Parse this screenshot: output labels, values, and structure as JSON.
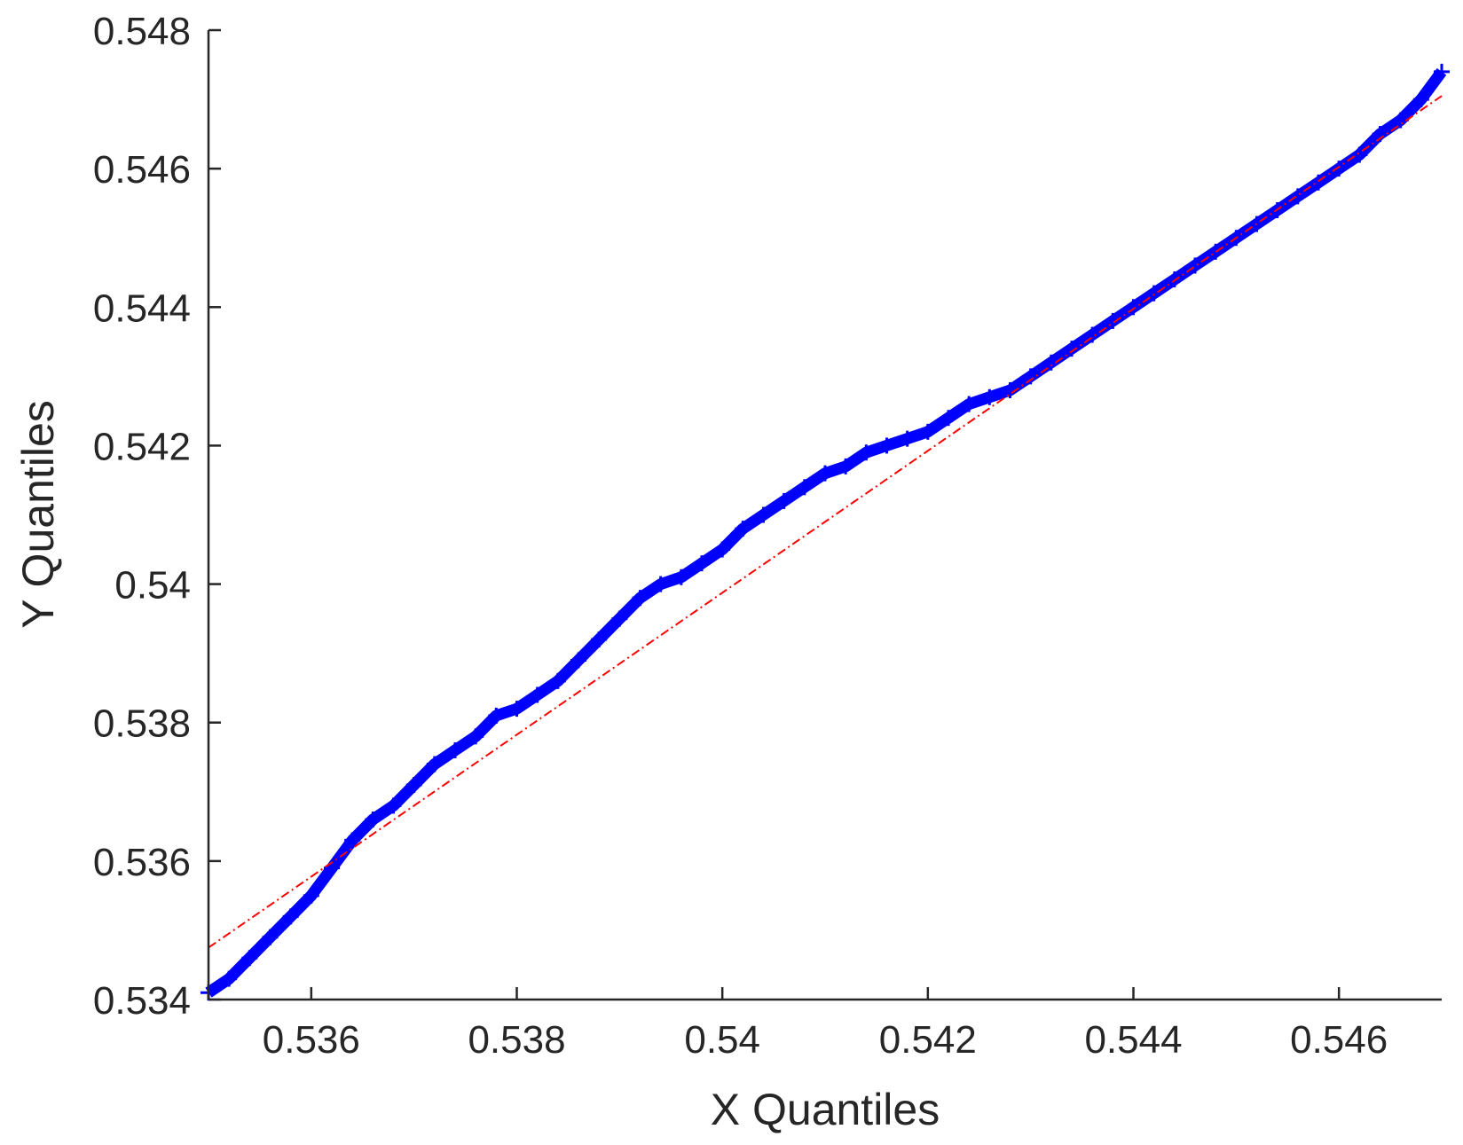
{
  "chart_data": {
    "type": "scatter",
    "title": "",
    "xlabel": "X Quantiles",
    "ylabel": "Y Quantiles",
    "xlim": [
      0.535,
      0.547
    ],
    "ylim": [
      0.534,
      0.548
    ],
    "x_ticks": [
      0.536,
      0.538,
      0.54,
      0.542,
      0.544,
      0.546
    ],
    "x_tick_labels": [
      "0.536",
      "0.538",
      "0.54",
      "0.542",
      "0.544",
      "0.546"
    ],
    "y_ticks": [
      0.534,
      0.536,
      0.538,
      0.54,
      0.542,
      0.544,
      0.546,
      0.548
    ],
    "y_tick_labels": [
      "0.534",
      "0.536",
      "0.538",
      "0.54",
      "0.542",
      "0.544",
      "0.546",
      "0.548"
    ],
    "grid": false,
    "marker": "+",
    "colors": {
      "points": "#0000ff",
      "reference_line": "#ff0000",
      "axes": "#262626"
    },
    "reference_line": {
      "style": "dash-dot",
      "x": [
        0.535,
        0.547
      ],
      "y": [
        0.53475,
        0.54705
      ]
    },
    "series": [
      {
        "x": [
          0.535,
          0.5352,
          0.5354,
          0.5356,
          0.5358,
          0.536,
          0.5362,
          0.5364,
          0.5366,
          0.5368,
          0.537,
          0.5372,
          0.5374,
          0.5376,
          0.5378,
          0.538,
          0.5382,
          0.5384,
          0.5386,
          0.5388,
          0.539,
          0.5392,
          0.5394,
          0.5396,
          0.5398,
          0.54,
          0.5402,
          0.5404,
          0.5406,
          0.5408,
          0.541,
          0.5412,
          0.5414,
          0.5416,
          0.5418,
          0.542,
          0.5422,
          0.5424,
          0.5426,
          0.5428,
          0.543,
          0.5432,
          0.5434,
          0.5436,
          0.5438,
          0.544,
          0.5442,
          0.5444,
          0.5446,
          0.5448,
          0.545,
          0.5452,
          0.5454,
          0.5456,
          0.5458,
          0.546,
          0.5462,
          0.5464,
          0.5466,
          0.5468,
          0.547
        ],
        "y": [
          0.5341,
          0.5343,
          0.5346,
          0.5349,
          0.5352,
          0.5355,
          0.5359,
          0.5363,
          0.5366,
          0.5368,
          0.5371,
          0.5374,
          0.5376,
          0.5378,
          0.5381,
          0.5382,
          0.5384,
          0.5386,
          0.5389,
          0.5392,
          0.5395,
          0.5398,
          0.54,
          0.5401,
          0.5403,
          0.5405,
          0.5408,
          0.541,
          0.5412,
          0.5414,
          0.5416,
          0.5417,
          0.5419,
          0.542,
          0.5421,
          0.5422,
          0.5424,
          0.5426,
          0.5427,
          0.5428,
          0.543,
          0.5432,
          0.5434,
          0.5436,
          0.5438,
          0.544,
          0.5442,
          0.5444,
          0.5446,
          0.5448,
          0.545,
          0.5452,
          0.5454,
          0.5456,
          0.5458,
          0.546,
          0.5462,
          0.5465,
          0.5467,
          0.547,
          0.5474
        ]
      }
    ]
  }
}
